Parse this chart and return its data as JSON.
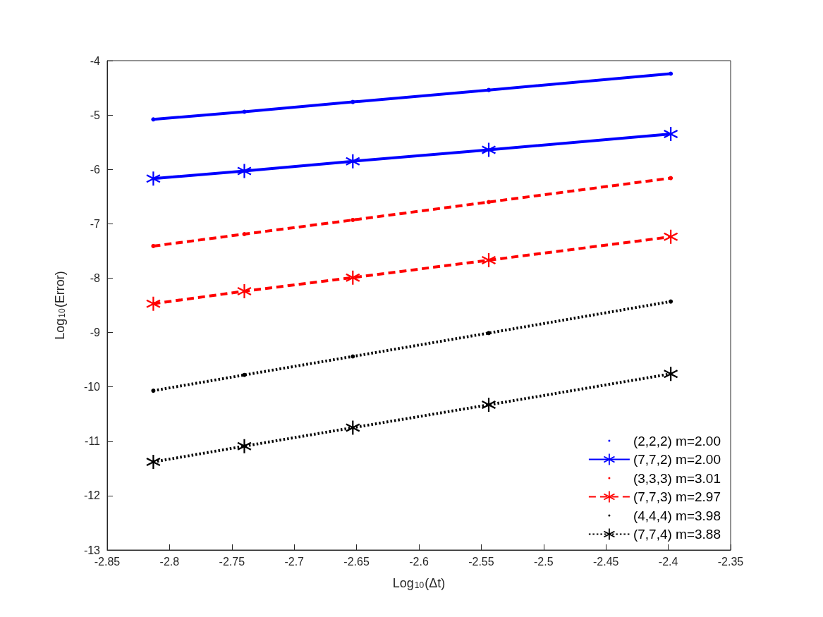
{
  "chart_data": {
    "type": "line",
    "xlabel": "Log$_{10}$(Δt)",
    "ylabel": "Log$_{10}$(Error)",
    "x": [
      -2.813,
      -2.74,
      -2.653,
      -2.544,
      -2.398
    ],
    "xlim": [
      -2.85,
      -2.35
    ],
    "xticks": [
      -2.85,
      -2.8,
      -2.75,
      -2.7,
      -2.65,
      -2.6,
      -2.55,
      -2.5,
      -2.45,
      -2.4,
      -2.35
    ],
    "ylim": [
      -13,
      -4
    ],
    "yticks": [
      -13,
      -12,
      -11,
      -10,
      -9,
      -8,
      -7,
      -6,
      -5,
      -4
    ],
    "grid": false,
    "legend": "bottom right",
    "series": [
      {
        "name": "(2,2,2) m=2.00",
        "color": "#0000ff",
        "line_style": "solid",
        "marker": "circle",
        "values": [
          -5.08,
          -4.94,
          -4.76,
          -4.54,
          -4.24
        ]
      },
      {
        "name": "(7,7,2) m=2.00",
        "color": "#0000ff",
        "line_style": "solid",
        "marker": "star",
        "values": [
          -6.17,
          -6.03,
          -5.85,
          -5.64,
          -5.35
        ]
      },
      {
        "name": "(3,3,3) m=3.01",
        "color": "#ff0000",
        "line_style": "dashed",
        "marker": "circle",
        "values": [
          -7.41,
          -7.19,
          -6.93,
          -6.6,
          -6.16
        ]
      },
      {
        "name": "(7,7,3) m=2.97",
        "color": "#ff0000",
        "line_style": "dashed",
        "marker": "star",
        "values": [
          -8.47,
          -8.24,
          -7.99,
          -7.67,
          -7.24
        ]
      },
      {
        "name": "(4,4,4) m=3.98",
        "color": "#000000",
        "line_style": "dotted",
        "marker": "circle",
        "values": [
          -10.07,
          -9.78,
          -9.44,
          -9.01,
          -8.43
        ]
      },
      {
        "name": "(7,7,4) m=3.88",
        "color": "#000000",
        "line_style": "dotted",
        "marker": "star",
        "values": [
          -11.38,
          -11.09,
          -10.75,
          -10.33,
          -9.76
        ]
      }
    ]
  }
}
